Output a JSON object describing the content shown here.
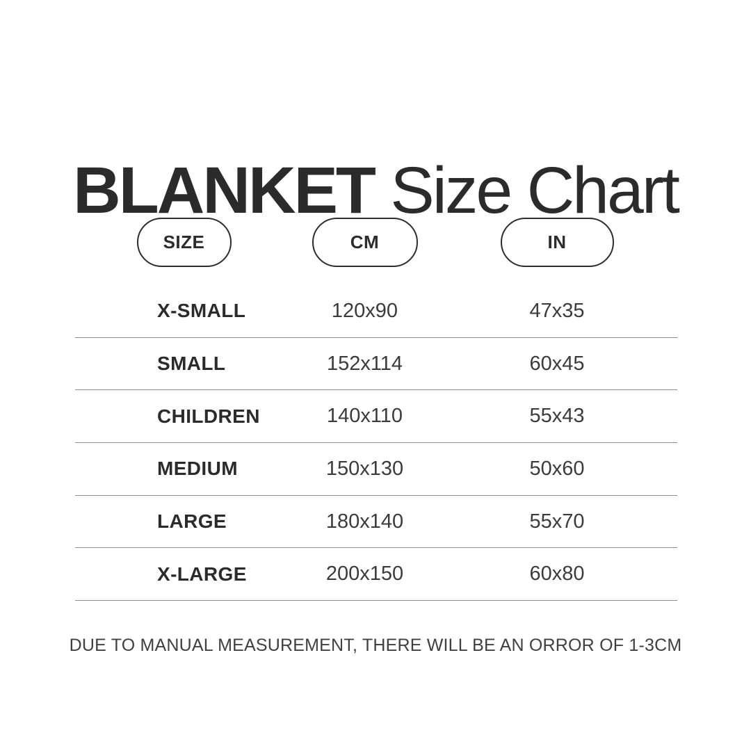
{
  "title": {
    "bold": "BLANKET",
    "regular": "Size Chart"
  },
  "table": {
    "headers": [
      {
        "label": "SIZE"
      },
      {
        "label": "CM"
      },
      {
        "label": "IN"
      }
    ],
    "rows": [
      {
        "size": "X-SMALL",
        "cm": "120x90",
        "in": "47x35"
      },
      {
        "size": "SMALL",
        "cm": "152x114",
        "in": "60x45"
      },
      {
        "size": "CHILDREN",
        "cm": "140x110",
        "in": "55x43"
      },
      {
        "size": "MEDIUM",
        "cm": "150x130",
        "in": "50x60"
      },
      {
        "size": "LARGE",
        "cm": "180x140",
        "in": "55x70"
      },
      {
        "size": "X-LARGE",
        "cm": "200x150",
        "in": "60x80"
      }
    ]
  },
  "footer": {
    "note": "DUE TO MANUAL MEASUREMENT, THERE WILL BE AN ORROR OF 1-3CM"
  },
  "colors": {
    "text_dark": "#2b2b2b",
    "value_text": "#3b3b3b",
    "divider": "#8d8d8d",
    "pill_border": "#2c2c2c",
    "background": "#ffffff"
  },
  "chart_data": {
    "type": "table",
    "title": "BLANKET Size Chart",
    "columns": [
      "SIZE",
      "CM",
      "IN"
    ],
    "rows": [
      [
        "X-SMALL",
        "120x90",
        "47x35"
      ],
      [
        "SMALL",
        "152x114",
        "60x45"
      ],
      [
        "CHILDREN",
        "140x110",
        "55x43"
      ],
      [
        "MEDIUM",
        "150x130",
        "50x60"
      ],
      [
        "LARGE",
        "180x140",
        "55x70"
      ],
      [
        "X-LARGE",
        "200x150",
        "60x80"
      ]
    ],
    "footnote": "DUE TO MANUAL MEASUREMENT, THERE WILL BE AN ORROR OF 1-3CM"
  }
}
